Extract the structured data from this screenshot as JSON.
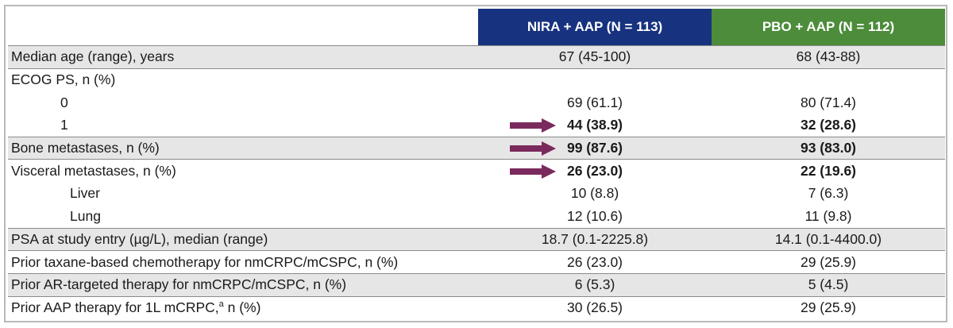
{
  "header": {
    "blank": "",
    "nira": "NIRA + AAP  (N = 113)",
    "pbo": "PBO + AAP (N = 112)"
  },
  "colors": {
    "nira_header": "#17337f",
    "pbo_header": "#4c8c3a",
    "arrow": "#7a2a5c",
    "row_shade": "#e6e6e6"
  },
  "rows": [
    {
      "label": "Median age (range), years",
      "nira": "67 (45-100)",
      "pbo": "68 (43-88)"
    },
    {
      "label": "ECOG PS, n (%)",
      "nira": "",
      "pbo": ""
    },
    {
      "label": "0",
      "nira": "69 (61.1)",
      "pbo": "80 (71.4)"
    },
    {
      "label": "1",
      "nira": "44 (38.9)",
      "pbo": "32 (28.6)",
      "arrow_icon": "right-arrow-icon"
    },
    {
      "label": "Bone metastases, n (%)",
      "nira": "99 (87.6)",
      "pbo": "93 (83.0)",
      "arrow_icon": "right-arrow-icon"
    },
    {
      "label": "Visceral metastases, n (%)",
      "nira": "26 (23.0)",
      "pbo": "22 (19.6)",
      "arrow_icon": "right-arrow-icon"
    },
    {
      "label": "Liver",
      "nira": "10 (8.8)",
      "pbo": "7 (6.3)"
    },
    {
      "label": "Lung",
      "nira": "12 (10.6)",
      "pbo": "11 (9.8)"
    },
    {
      "label": "PSA at study entry (µg/L), median (range)",
      "nira": "18.7 (0.1-2225.8)",
      "pbo": "14.1 (0.1-4400.0)"
    },
    {
      "label": "Prior taxane-based chemotherapy for nmCRPC/mCSPC, n (%)",
      "nira": "26 (23.0)",
      "pbo": "29 (25.9)"
    },
    {
      "label": "Prior AR-targeted therapy for nmCRPC/mCSPC, n (%)",
      "nira": "6 (5.3)",
      "pbo": "5 (4.5)"
    },
    {
      "label": "Prior AAP therapy for 1L mCRPC,",
      "label_sup": "a",
      "label_suffix": " n (%)",
      "nira": "30 (26.5)",
      "pbo": "29 (25.9)"
    }
  ]
}
